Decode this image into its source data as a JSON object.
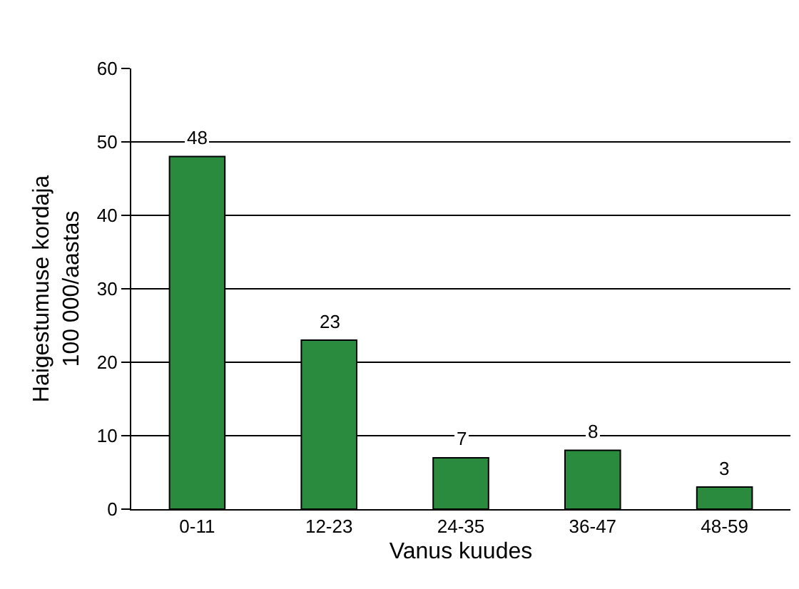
{
  "chart_data": {
    "type": "bar",
    "categories": [
      "0-11",
      "12-23",
      "24-35",
      "36-47",
      "48-59"
    ],
    "values": [
      48,
      23,
      7,
      8,
      3
    ],
    "color": "#2a8a3e",
    "xlabel": "Vanus kuudes",
    "ylabel": "Haigestumuse kordaja\n100 000/aastas",
    "ylim": [
      0,
      60
    ],
    "yticks": [
      0,
      10,
      20,
      30,
      40,
      50,
      60
    ],
    "grid": "y",
    "data_labels": true
  }
}
